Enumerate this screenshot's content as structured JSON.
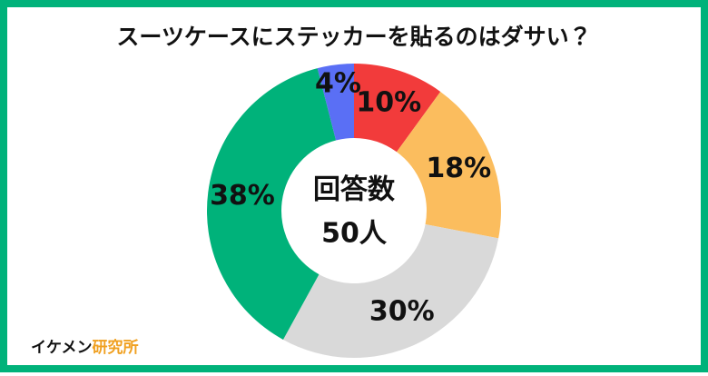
{
  "chart_data": {
    "type": "pie",
    "donut": true,
    "title": "スーツケースにステッカーを貼るのはダサい？",
    "values": [
      10,
      18,
      30,
      38,
      4
    ],
    "value_labels": [
      "10%",
      "18%",
      "30%",
      "38%",
      "4%"
    ],
    "colors": [
      "#f23b3b",
      "#fbbd5e",
      "#d9d9d9",
      "#00b27a",
      "#5a6ff5"
    ],
    "center_text": [
      "回答数",
      "50人"
    ]
  },
  "brand": {
    "name": "イケメン",
    "highlight": "研究所"
  }
}
